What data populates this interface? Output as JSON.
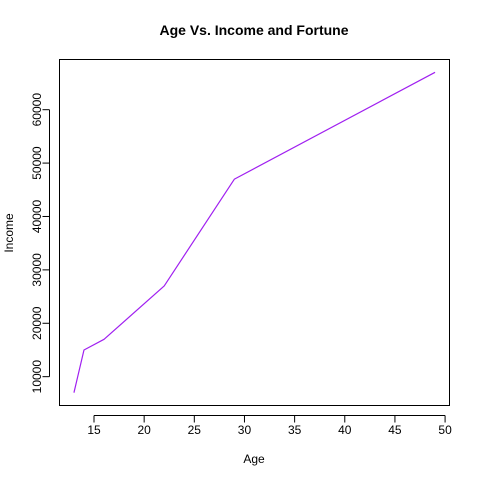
{
  "chart_data": {
    "type": "line",
    "title": "Age Vs. Income and Fortune",
    "xlabel": "Age",
    "ylabel": "Income",
    "xlim": [
      11.56,
      50.44
    ],
    "ylim": [
      4600,
      69400
    ],
    "xticks": [
      15,
      20,
      25,
      30,
      35,
      40,
      45,
      50
    ],
    "yticks": [
      10000,
      20000,
      30000,
      40000,
      50000,
      60000
    ],
    "series": [
      {
        "color": "#a020f0",
        "x": [
          13,
          14,
          16,
          22,
          29,
          49
        ],
        "y": [
          7000,
          15000,
          17000,
          27000,
          47000,
          67000
        ]
      }
    ],
    "grid": false,
    "legend": "none"
  }
}
